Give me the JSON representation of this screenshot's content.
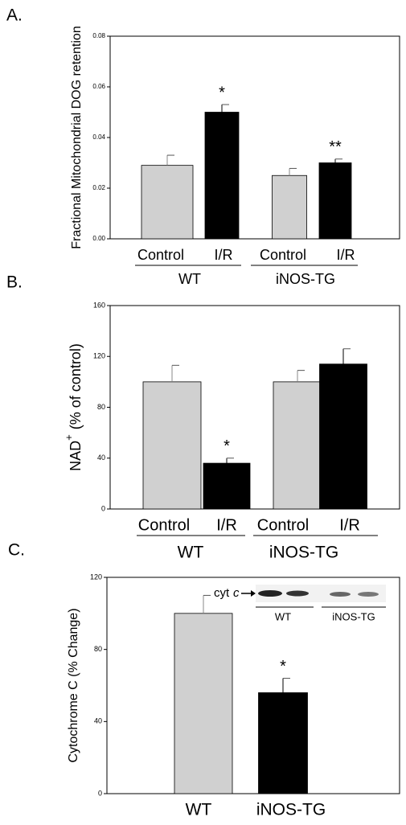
{
  "chart_data": [
    {
      "type": "bar",
      "label": "A.",
      "ylabel": "Fractional Mitochondrial DOG retention",
      "categories": [
        "Control",
        "I/R",
        "Control",
        "I/R"
      ],
      "groups": [
        "WT",
        "iNOS-TG"
      ],
      "values": [
        0.029,
        0.05,
        0.025,
        0.03
      ],
      "errors": [
        0.004,
        0.003,
        0.0028,
        0.0015
      ],
      "annotations": [
        null,
        "*",
        null,
        "**"
      ],
      "colors": [
        "#d0d0d0",
        "#000000",
        "#d0d0d0",
        "#000000"
      ],
      "ylim": [
        0,
        0.08
      ],
      "yticks": [
        {
          "value": 0,
          "label": "0.00"
        },
        {
          "value": 0.02,
          "label": "0.02"
        },
        {
          "value": 0.04,
          "label": "0.04"
        },
        {
          "value": 0.06,
          "label": "0.06"
        },
        {
          "value": 0.08,
          "label": "0.08"
        }
      ]
    },
    {
      "type": "bar",
      "label": "B.",
      "ylabel": "NAD",
      "ylabel_sup": "+",
      "ylabel_rest": "(% of control)",
      "categories": [
        "Control",
        "I/R",
        "Control",
        "I/R"
      ],
      "groups": [
        "WT",
        "iNOS-TG"
      ],
      "values": [
        100,
        36,
        100,
        114
      ],
      "errors": [
        13,
        4,
        9,
        12
      ],
      "annotations": [
        null,
        "*",
        null,
        null
      ],
      "colors": [
        "#d0d0d0",
        "#000000",
        "#d0d0d0",
        "#000000"
      ],
      "ylim": [
        0,
        160
      ],
      "yticks": [
        0,
        40,
        80,
        120,
        160
      ]
    },
    {
      "type": "bar",
      "label": "C.",
      "ylabel": "Cytochrome C (% Change)",
      "categories": [
        "WT",
        "iNOS-TG"
      ],
      "values": [
        100,
        56
      ],
      "errors": [
        10,
        8
      ],
      "annotations": [
        null,
        "*"
      ],
      "colors": [
        "#d0d0d0",
        "#000000"
      ],
      "ylim": [
        0,
        120
      ],
      "yticks": [
        0,
        40,
        80,
        120
      ],
      "inset": {
        "protein": "cyt",
        "protein_italic": "c",
        "lanes": [
          "WT",
          "iNOS-TG"
        ]
      }
    }
  ]
}
